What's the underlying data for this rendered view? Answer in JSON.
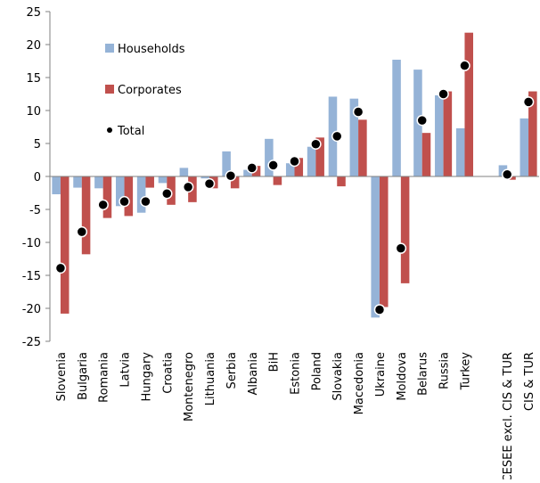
{
  "chart_data": {
    "type": "bar",
    "categories": [
      "Slovenia",
      "Bulgaria",
      "Romania",
      "Latvia",
      "Hungary",
      "Croatia",
      "Montenegro",
      "Lithuania",
      "Serbia",
      "Albania",
      "BiH",
      "Estonia",
      "Poland",
      "Slovakia",
      "Macedonia",
      "Ukraine",
      "Moldova",
      "Belarus",
      "Russia",
      "Turkey",
      null,
      "CESEE excl. CIS & TUR",
      "CIS & TUR"
    ],
    "series": [
      {
        "name": "Households",
        "type": "bar",
        "color": "#95b3d7",
        "values": [
          -2.7,
          -1.7,
          -1.8,
          -4.5,
          -5.5,
          -1.0,
          1.3,
          -0.3,
          3.8,
          1.0,
          5.7,
          2.0,
          4.5,
          12.1,
          11.8,
          -21.4,
          17.7,
          16.2,
          12.3,
          7.3,
          null,
          1.7,
          8.8
        ]
      },
      {
        "name": "Corporates",
        "type": "bar",
        "color": "#c0504d",
        "values": [
          -20.8,
          -11.8,
          -6.3,
          -6.0,
          -1.7,
          -4.3,
          -3.9,
          -1.8,
          -1.8,
          1.6,
          -1.3,
          2.8,
          5.9,
          -1.5,
          8.6,
          -19.8,
          -16.2,
          6.6,
          12.9,
          21.8,
          null,
          -0.5,
          12.9
        ]
      },
      {
        "name": "Total",
        "type": "dot",
        "color": "#000000",
        "values": [
          -13.9,
          -8.4,
          -4.3,
          -3.8,
          -3.8,
          -2.6,
          -1.6,
          -1.1,
          0.1,
          1.3,
          1.7,
          2.3,
          4.9,
          6.1,
          9.8,
          -20.2,
          -10.9,
          8.5,
          12.5,
          16.8,
          null,
          0.3,
          11.3
        ]
      }
    ],
    "ylim": [
      -25,
      25
    ],
    "yticks": [
      -25,
      -20,
      -15,
      -10,
      -5,
      0,
      5,
      10,
      15,
      20,
      25
    ],
    "legend": "upper left"
  }
}
